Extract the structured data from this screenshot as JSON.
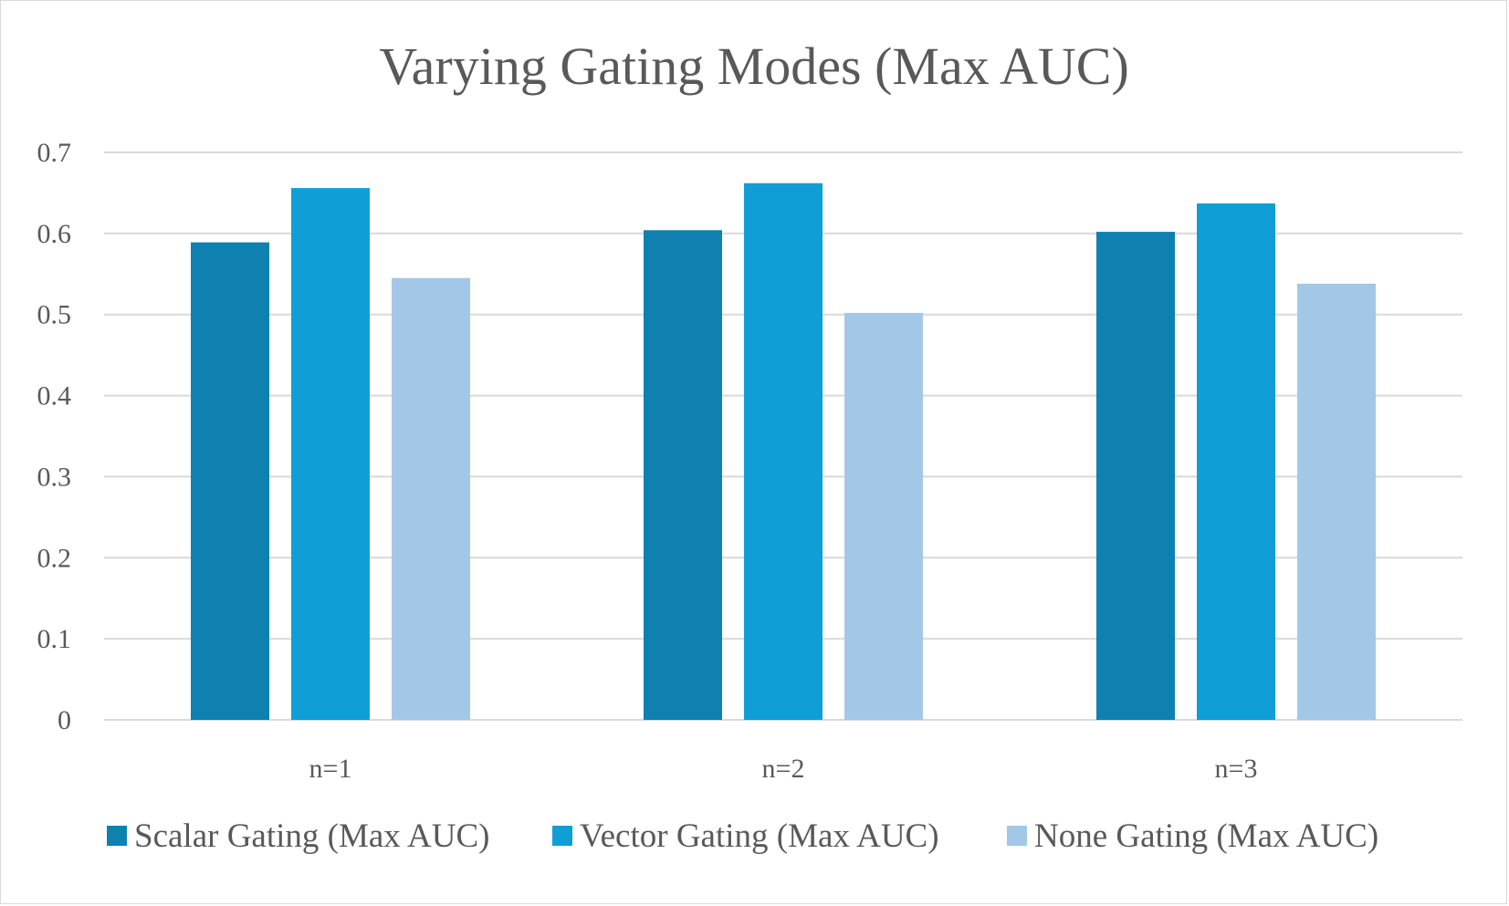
{
  "chart_data": {
    "type": "bar",
    "title": "Varying Gating Modes (Max AUC)",
    "xlabel": "",
    "ylabel": "",
    "categories": [
      "n=1",
      "n=2",
      "n=3"
    ],
    "series": [
      {
        "name": "Scalar Gating (Max AUC)",
        "color": "#0f81b1",
        "values": [
          0.589,
          0.604,
          0.602
        ]
      },
      {
        "name": "Vector Gating (Max AUC)",
        "color": "#109ed7",
        "values": [
          0.656,
          0.662,
          0.637
        ]
      },
      {
        "name": "None Gating (Max AUC)",
        "color": "#a3c7e7",
        "values": [
          0.545,
          0.502,
          0.538
        ]
      }
    ],
    "ylim": [
      0,
      0.7
    ],
    "yticks": [
      0,
      0.1,
      0.2,
      0.3,
      0.4,
      0.5,
      0.6,
      0.7
    ],
    "ytick_labels": [
      "0",
      "0.1",
      "0.2",
      "0.3",
      "0.4",
      "0.5",
      "0.6",
      "0.7"
    ],
    "grid": true,
    "legend_position": "bottom",
    "gridline_color": "#d9d9d9"
  }
}
